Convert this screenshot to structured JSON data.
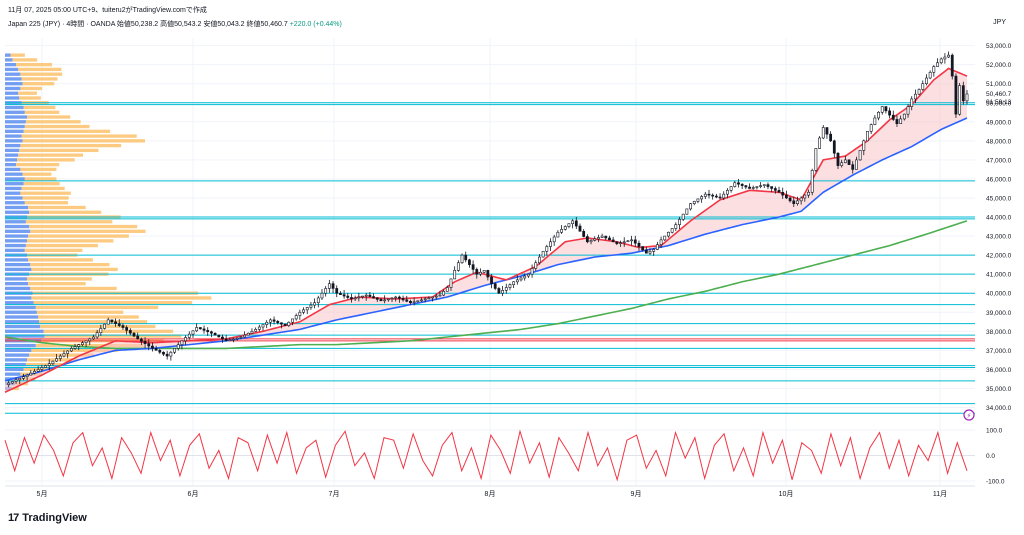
{
  "header": {
    "title": "11月 07, 2025 05:00 UTC+9、tuiteru2がTradingView.comで作成",
    "symbol_line": "Japan 225 (JPY) · 4時間 · OANDA  始値50,238.2  高値50,543.2  安値50,043.2  終値50,460.7",
    "change": "+220.0 (+0.44%)",
    "currency": "JPY"
  },
  "price_tag": {
    "price": "50,460.7",
    "countdown": "01:59:13"
  },
  "brand": {
    "logo": "17",
    "name": "TradingView"
  },
  "colors": {
    "candle": "#131722",
    "ema_short": "#f23645",
    "ema_mid": "#2962ff",
    "ema_long": "#4caf50",
    "hline": "#00bcd4",
    "hline_red": "#f23645",
    "vp_blue": "#5b8def",
    "vp_orange": "#fbc26b",
    "fill": "#f7c4c8",
    "stoch": "#f23645",
    "grid": "#f0f3fa"
  },
  "chart_data": {
    "type": "line",
    "x_labels": [
      "5月",
      "6月",
      "7月",
      "8月",
      "9月",
      "10月",
      "11月"
    ],
    "y_ticks": [
      34000,
      35000,
      36000,
      37000,
      38000,
      39000,
      40000,
      41000,
      42000,
      43000,
      44000,
      45000,
      46000,
      47000,
      48000,
      49000,
      50000,
      51000,
      52000,
      53000
    ],
    "ylim": [
      33500,
      53400
    ],
    "price_path": [
      [
        0,
        35200
      ],
      [
        6,
        35700
      ],
      [
        12,
        36300
      ],
      [
        18,
        37100
      ],
      [
        24,
        37700
      ],
      [
        28,
        38600
      ],
      [
        32,
        38200
      ],
      [
        36,
        37600
      ],
      [
        40,
        37100
      ],
      [
        44,
        36700
      ],
      [
        48,
        37500
      ],
      [
        52,
        38200
      ],
      [
        56,
        37900
      ],
      [
        60,
        37500
      ],
      [
        64,
        37700
      ],
      [
        68,
        38100
      ],
      [
        72,
        38600
      ],
      [
        76,
        38300
      ],
      [
        80,
        39000
      ],
      [
        84,
        39500
      ],
      [
        88,
        40500
      ],
      [
        90,
        40000
      ],
      [
        94,
        39700
      ],
      [
        98,
        39900
      ],
      [
        102,
        39600
      ],
      [
        106,
        39800
      ],
      [
        110,
        39500
      ],
      [
        114,
        39700
      ],
      [
        118,
        39900
      ],
      [
        120,
        40300
      ],
      [
        122,
        41200
      ],
      [
        124,
        42000
      ],
      [
        126,
        41500
      ],
      [
        128,
        41000
      ],
      [
        130,
        41200
      ],
      [
        132,
        40500
      ],
      [
        134,
        40000
      ],
      [
        136,
        40300
      ],
      [
        138,
        40600
      ],
      [
        142,
        41000
      ],
      [
        146,
        42200
      ],
      [
        150,
        43200
      ],
      [
        154,
        43800
      ],
      [
        158,
        42700
      ],
      [
        162,
        43000
      ],
      [
        166,
        42600
      ],
      [
        170,
        42800
      ],
      [
        174,
        42100
      ],
      [
        176,
        42300
      ],
      [
        178,
        42800
      ],
      [
        182,
        43600
      ],
      [
        186,
        44700
      ],
      [
        190,
        45200
      ],
      [
        194,
        45000
      ],
      [
        198,
        45800
      ],
      [
        202,
        45500
      ],
      [
        206,
        45700
      ],
      [
        210,
        45300
      ],
      [
        214,
        44700
      ],
      [
        218,
        45300
      ],
      [
        220,
        47600
      ],
      [
        222,
        48700
      ],
      [
        224,
        48000
      ],
      [
        226,
        46700
      ],
      [
        228,
        47000
      ],
      [
        230,
        46500
      ],
      [
        232,
        47500
      ],
      [
        234,
        48500
      ],
      [
        236,
        49200
      ],
      [
        238,
        49800
      ],
      [
        242,
        48900
      ],
      [
        244,
        49400
      ],
      [
        246,
        50200
      ],
      [
        248,
        50700
      ],
      [
        250,
        51300
      ],
      [
        252,
        51900
      ],
      [
        254,
        52300
      ],
      [
        256,
        52500
      ],
      [
        257,
        51400
      ],
      [
        258,
        49400
      ],
      [
        259,
        50900
      ],
      [
        260,
        50100
      ],
      [
        261,
        50460
      ]
    ],
    "ema_short": [
      [
        0,
        34800
      ],
      [
        10,
        35700
      ],
      [
        20,
        36700
      ],
      [
        30,
        37500
      ],
      [
        40,
        37400
      ],
      [
        50,
        37500
      ],
      [
        60,
        37600
      ],
      [
        70,
        38000
      ],
      [
        80,
        38500
      ],
      [
        88,
        39400
      ],
      [
        96,
        39800
      ],
      [
        106,
        39700
      ],
      [
        116,
        39800
      ],
      [
        122,
        40600
      ],
      [
        128,
        41100
      ],
      [
        136,
        40700
      ],
      [
        144,
        41400
      ],
      [
        152,
        42700
      ],
      [
        158,
        42900
      ],
      [
        166,
        42700
      ],
      [
        172,
        42400
      ],
      [
        178,
        42500
      ],
      [
        186,
        43800
      ],
      [
        194,
        44900
      ],
      [
        202,
        45400
      ],
      [
        210,
        45300
      ],
      [
        216,
        44900
      ],
      [
        222,
        47000
      ],
      [
        228,
        47200
      ],
      [
        234,
        48000
      ],
      [
        240,
        49100
      ],
      [
        246,
        49900
      ],
      [
        252,
        51200
      ],
      [
        256,
        51800
      ],
      [
        261,
        51400
      ]
    ],
    "ema_mid": [
      [
        0,
        35400
      ],
      [
        10,
        35900
      ],
      [
        20,
        36500
      ],
      [
        30,
        37000
      ],
      [
        40,
        37100
      ],
      [
        50,
        37300
      ],
      [
        60,
        37500
      ],
      [
        70,
        37800
      ],
      [
        80,
        38100
      ],
      [
        90,
        38600
      ],
      [
        100,
        39000
      ],
      [
        110,
        39400
      ],
      [
        120,
        39800
      ],
      [
        130,
        40400
      ],
      [
        140,
        40900
      ],
      [
        150,
        41500
      ],
      [
        160,
        41900
      ],
      [
        170,
        42100
      ],
      [
        180,
        42500
      ],
      [
        190,
        43100
      ],
      [
        200,
        43600
      ],
      [
        210,
        44000
      ],
      [
        216,
        44300
      ],
      [
        222,
        45300
      ],
      [
        230,
        46200
      ],
      [
        238,
        47000
      ],
      [
        246,
        47700
      ],
      [
        254,
        48600
      ],
      [
        261,
        49200
      ]
    ],
    "ema_long": [
      [
        0,
        37700
      ],
      [
        10,
        37400
      ],
      [
        20,
        37200
      ],
      [
        30,
        37100
      ],
      [
        40,
        37100
      ],
      [
        50,
        37100
      ],
      [
        60,
        37100
      ],
      [
        70,
        37200
      ],
      [
        80,
        37300
      ],
      [
        90,
        37300
      ],
      [
        100,
        37400
      ],
      [
        110,
        37500
      ],
      [
        120,
        37700
      ],
      [
        130,
        37900
      ],
      [
        140,
        38100
      ],
      [
        150,
        38400
      ],
      [
        160,
        38800
      ],
      [
        170,
        39200
      ],
      [
        180,
        39700
      ],
      [
        190,
        40100
      ],
      [
        200,
        40600
      ],
      [
        210,
        41000
      ],
      [
        220,
        41500
      ],
      [
        230,
        42000
      ],
      [
        240,
        42500
      ],
      [
        250,
        43100
      ],
      [
        261,
        43800
      ]
    ],
    "horizontal_levels": [
      33700,
      34200,
      35400,
      36100,
      36200,
      37100,
      37800,
      38400,
      39400,
      40000,
      41000,
      42000,
      43900,
      44000,
      45900,
      49900,
      50000
    ],
    "red_levels": [
      37500,
      37600
    ],
    "volume_profile": {
      "bins": [
        52500,
        52250,
        52000,
        51750,
        51500,
        51250,
        51000,
        50750,
        50500,
        50250,
        50000,
        49750,
        49500,
        49250,
        49000,
        48750,
        48500,
        48250,
        48000,
        47750,
        47500,
        47250,
        47000,
        46750,
        46500,
        46250,
        46000,
        45750,
        45500,
        45250,
        45000,
        44750,
        44500,
        44250,
        44000,
        43750,
        43500,
        43250,
        43000,
        42750,
        42500,
        42250,
        42000,
        41750,
        41500,
        41250,
        41000,
        40750,
        40500,
        40250,
        40000,
        39750,
        39500,
        39250,
        39000,
        38750,
        38500,
        38250,
        38000,
        37750,
        37500,
        37250,
        37000,
        36750,
        36500,
        36250,
        36000,
        35750,
        35500,
        35250,
        35000
      ],
      "blue": [
        10,
        14,
        20,
        24,
        28,
        30,
        32,
        28,
        24,
        26,
        30,
        34,
        36,
        40,
        38,
        36,
        34,
        30,
        32,
        28,
        26,
        24,
        22,
        20,
        28,
        32,
        36,
        34,
        30,
        28,
        32,
        36,
        42,
        44,
        40,
        38,
        44,
        46,
        42,
        40,
        38,
        36,
        40,
        42,
        46,
        48,
        44,
        40,
        42,
        46,
        50,
        48,
        52,
        56,
        58,
        60,
        62,
        64,
        70,
        72,
        66,
        56,
        48,
        44,
        40,
        38,
        34,
        28,
        24,
        18,
        12
      ],
      "orange": [
        20,
        34,
        50,
        60,
        58,
        50,
        44,
        30,
        26,
        30,
        38,
        44,
        48,
        60,
        76,
        90,
        120,
        160,
        170,
        140,
        110,
        90,
        80,
        60,
        50,
        40,
        44,
        50,
        60,
        70,
        64,
        60,
        80,
        100,
        130,
        120,
        150,
        160,
        140,
        120,
        100,
        80,
        70,
        90,
        110,
        120,
        110,
        90,
        80,
        120,
        230,
        250,
        220,
        170,
        120,
        140,
        150,
        160,
        180,
        190,
        170,
        150,
        120,
        90,
        70,
        50,
        40,
        30,
        24,
        18,
        10
      ]
    },
    "stochastic": {
      "ylim": [
        -100,
        100
      ],
      "y_ticks": [
        100,
        0,
        -100
      ],
      "values": [
        60,
        -60,
        70,
        -30,
        80,
        20,
        -80,
        50,
        90,
        -40,
        30,
        -90,
        70,
        10,
        -70,
        90,
        -20,
        60,
        -80,
        40,
        85,
        -50,
        20,
        -90,
        70,
        50,
        -60,
        80,
        -30,
        90,
        -70,
        30,
        60,
        -85,
        40,
        95,
        -40,
        10,
        -90,
        70,
        60,
        -50,
        85,
        -20,
        -80,
        40,
        90,
        -60,
        30,
        -90,
        80,
        20,
        -70,
        95,
        -30,
        50,
        -85,
        70,
        10,
        -60,
        90,
        -40,
        30,
        -95,
        60,
        80,
        -50,
        20,
        -80,
        90,
        -10,
        70,
        -90,
        40,
        85,
        -60,
        30,
        -80,
        90,
        -30,
        60,
        -95,
        50,
        20,
        -70,
        85,
        -40,
        70,
        -90,
        30,
        90,
        -50,
        60,
        -80,
        40,
        -20,
        90,
        -70,
        50,
        -60
      ]
    }
  }
}
